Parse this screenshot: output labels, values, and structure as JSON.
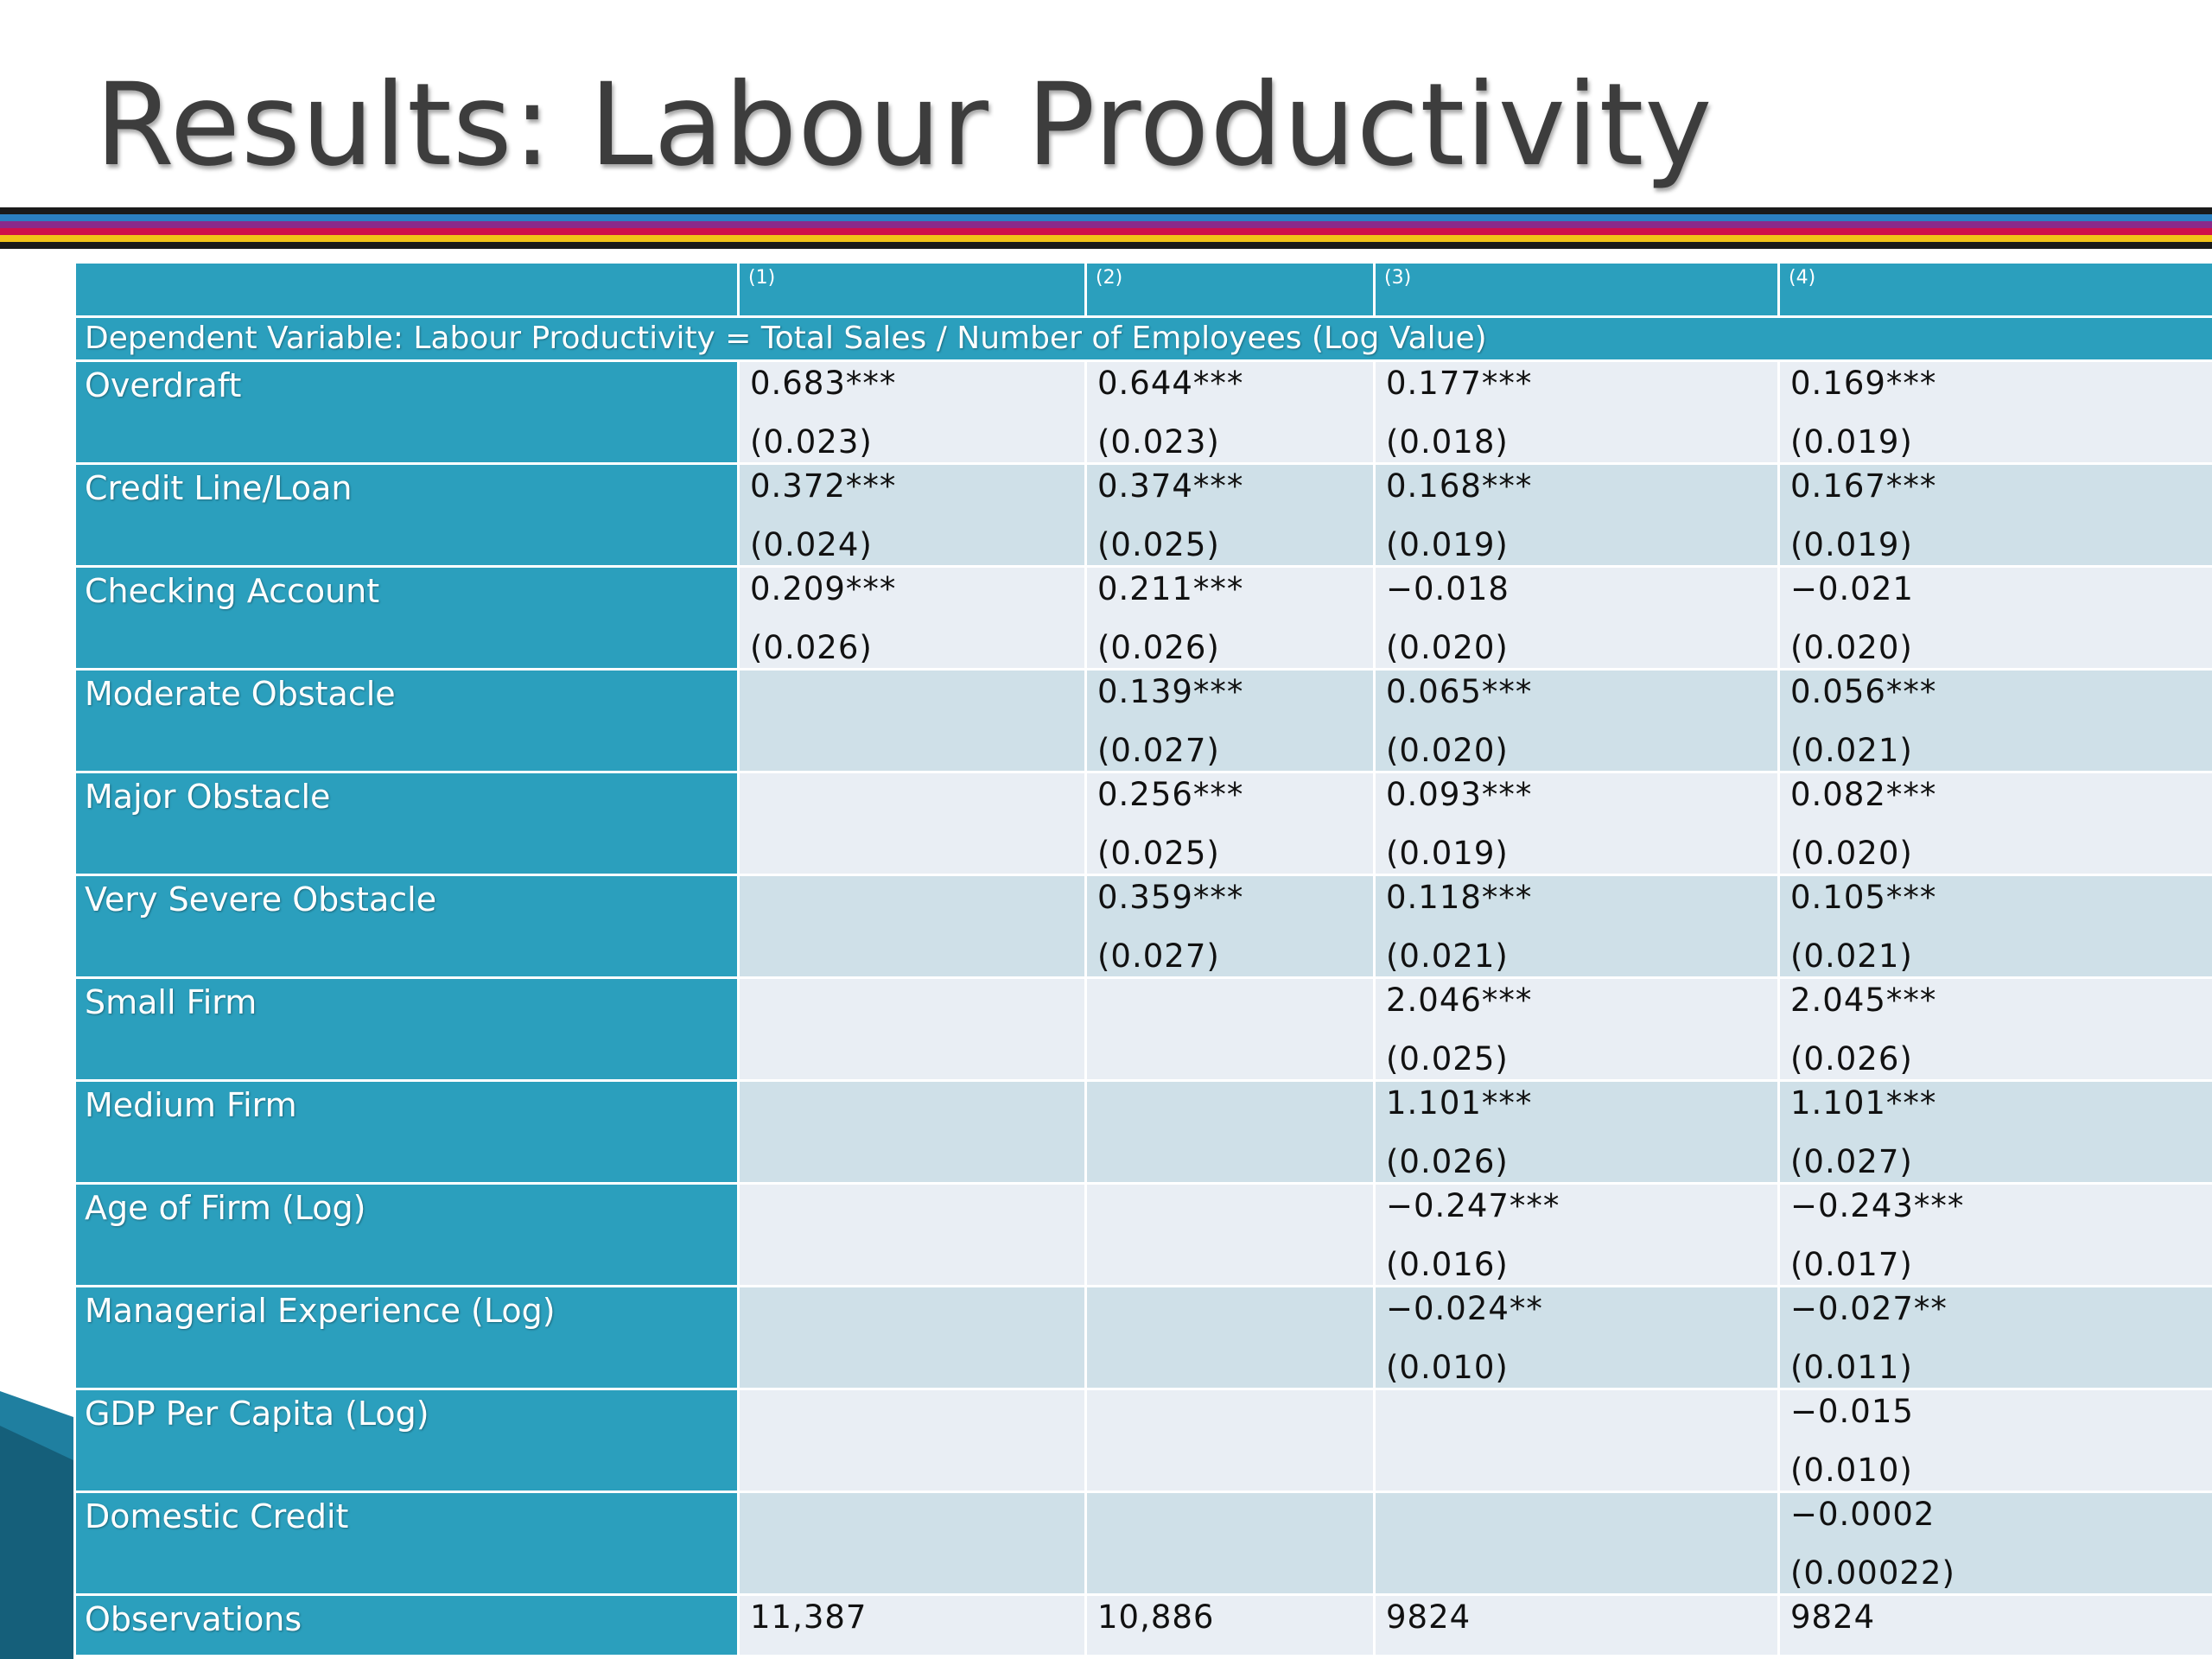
{
  "slide": {
    "title": "Results: Labour Productivity"
  },
  "colors": {
    "header_teal": "#2b9fbd",
    "row_light": "#e9eef4",
    "row_alt": "#cfe0e8",
    "title_gray": "#3d3d3d"
  },
  "table": {
    "column_headers": [
      "(1)",
      "(2)",
      "(3)",
      "(4)"
    ],
    "dependent_variable": "Dependent Variable: Labour Productivity = Total Sales / Number of Employees (Log Value)",
    "rows": [
      {
        "label": "Overdraft",
        "cells": [
          {
            "coef": "0.683***",
            "se": "(0.023)"
          },
          {
            "coef": "0.644***",
            "se": "(0.023)"
          },
          {
            "coef": "0.177***",
            "se": "(0.018)"
          },
          {
            "coef": "0.169***",
            "se": "(0.019)"
          }
        ]
      },
      {
        "label": "Credit Line/Loan",
        "cells": [
          {
            "coef": "0.372***",
            "se": "(0.024)"
          },
          {
            "coef": "0.374***",
            "se": "(0.025)"
          },
          {
            "coef": "0.168***",
            "se": "(0.019)"
          },
          {
            "coef": "0.167***",
            "se": "(0.019)"
          }
        ]
      },
      {
        "label": "Checking Account",
        "cells": [
          {
            "coef": "0.209***",
            "se": "(0.026)"
          },
          {
            "coef": "0.211***",
            "se": "(0.026)"
          },
          {
            "coef": "−0.018",
            "se": "(0.020)"
          },
          {
            "coef": "−0.021",
            "se": "(0.020)"
          }
        ]
      },
      {
        "label": "Moderate Obstacle",
        "cells": [
          {
            "coef": "",
            "se": ""
          },
          {
            "coef": "0.139***",
            "se": "(0.027)"
          },
          {
            "coef": "0.065***",
            "se": "(0.020)"
          },
          {
            "coef": "0.056***",
            "se": "(0.021)"
          }
        ]
      },
      {
        "label": "Major Obstacle",
        "cells": [
          {
            "coef": "",
            "se": ""
          },
          {
            "coef": "0.256***",
            "se": "(0.025)"
          },
          {
            "coef": "0.093***",
            "se": "(0.019)"
          },
          {
            "coef": "0.082***",
            "se": "(0.020)"
          }
        ]
      },
      {
        "label": "Very Severe Obstacle",
        "cells": [
          {
            "coef": "",
            "se": ""
          },
          {
            "coef": "0.359***",
            "se": "(0.027)"
          },
          {
            "coef": "0.118***",
            "se": "(0.021)"
          },
          {
            "coef": "0.105***",
            "se": "(0.021)"
          }
        ]
      },
      {
        "label": "Small Firm",
        "cells": [
          {
            "coef": "",
            "se": ""
          },
          {
            "coef": "",
            "se": ""
          },
          {
            "coef": "2.046***",
            "se": "(0.025)"
          },
          {
            "coef": "2.045***",
            "se": "(0.026)"
          }
        ]
      },
      {
        "label": "Medium Firm",
        "cells": [
          {
            "coef": "",
            "se": ""
          },
          {
            "coef": "",
            "se": ""
          },
          {
            "coef": "1.101***",
            "se": "(0.026)"
          },
          {
            "coef": "1.101***",
            "se": "(0.027)"
          }
        ]
      },
      {
        "label": "Age of Firm (Log)",
        "cells": [
          {
            "coef": "",
            "se": ""
          },
          {
            "coef": "",
            "se": ""
          },
          {
            "coef": "−0.247***",
            "se": "(0.016)"
          },
          {
            "coef": "−0.243***",
            "se": "(0.017)"
          }
        ]
      },
      {
        "label": "Managerial Experience (Log)",
        "cells": [
          {
            "coef": "",
            "se": ""
          },
          {
            "coef": "",
            "se": ""
          },
          {
            "coef": "−0.024**",
            "se": "(0.010)"
          },
          {
            "coef": "−0.027**",
            "se": "(0.011)"
          }
        ]
      },
      {
        "label": "GDP Per Capita (Log)",
        "cells": [
          {
            "coef": "",
            "se": ""
          },
          {
            "coef": "",
            "se": ""
          },
          {
            "coef": "",
            "se": ""
          },
          {
            "coef": "−0.015",
            "se": "(0.010)"
          }
        ]
      },
      {
        "label": "Domestic Credit",
        "cells": [
          {
            "coef": "",
            "se": ""
          },
          {
            "coef": "",
            "se": ""
          },
          {
            "coef": "",
            "se": ""
          },
          {
            "coef": "−0.0002",
            "se": "(0.00022)"
          }
        ]
      }
    ],
    "observations": {
      "label": "Observations",
      "values": [
        "11,387",
        "10,886",
        "9824",
        "9824"
      ]
    }
  }
}
